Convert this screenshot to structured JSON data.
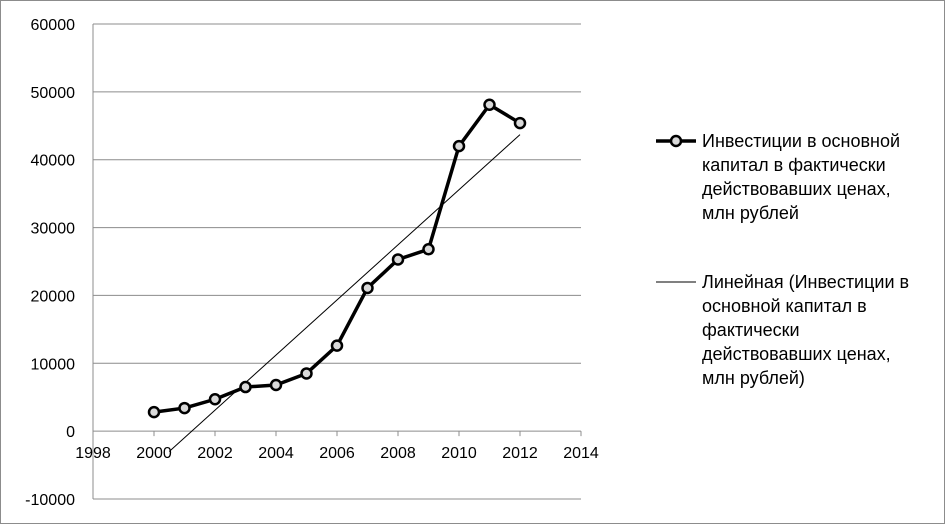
{
  "chart_data": {
    "type": "scatter",
    "x_ticks": [
      "1998",
      "2000",
      "2002",
      "2004",
      "2006",
      "2008",
      "2010",
      "2012",
      "2014"
    ],
    "y_ticks": [
      "60000",
      "50000",
      "40000",
      "30000",
      "20000",
      "10000",
      "0",
      "-10000"
    ],
    "xlim": [
      1998,
      2014
    ],
    "ylim": [
      -10000,
      60000
    ],
    "grid": "horizontal",
    "legend_position": "right",
    "series": [
      {
        "name": "Инвестиции в основной капитал в фактически действовавших ценах, млн рублей",
        "style": "line-markers",
        "color": "#000000",
        "x": [
          2000,
          2001,
          2002,
          2003,
          2004,
          2005,
          2006,
          2007,
          2008,
          2009,
          2010,
          2011,
          2012
        ],
        "y": [
          2800,
          3400,
          4700,
          6500,
          6800,
          8500,
          12600,
          21100,
          25300,
          26800,
          42000,
          48100,
          45400
        ]
      },
      {
        "name": "Линейная (Инвестиции в основной капитал в фактически действовавших ценах, млн рублей)",
        "style": "trendline",
        "color": "#000000",
        "x": [
          2000.5,
          2012
        ],
        "y": [
          -3000,
          43700
        ]
      }
    ],
    "legend_lines": [
      [
        "Инвестиции в основной",
        "капитал в фактически",
        "действовавших ценах,",
        "млн рублей"
      ],
      [
        "Линейная (Инвестиции в",
        "основной капитал в",
        "фактически",
        "действовавших ценах,",
        "млн рублей)"
      ]
    ]
  }
}
